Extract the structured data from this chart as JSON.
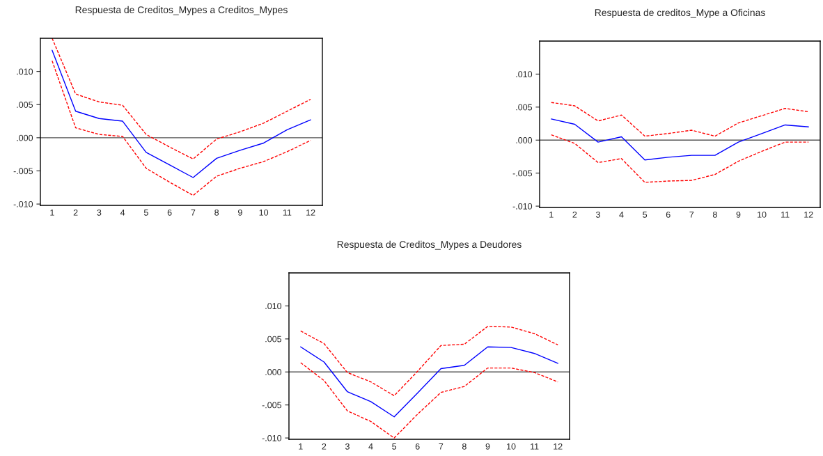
{
  "chart_data": [
    {
      "type": "line",
      "title": "Respuesta de Creditos_Mypes a Creditos_Mypes",
      "categories": [
        "1",
        "2",
        "3",
        "4",
        "5",
        "6",
        "7",
        "8",
        "9",
        "10",
        "11",
        "12"
      ],
      "ylim": [
        -0.0102,
        0.015
      ],
      "yticks": [
        {
          "value": -0.01,
          "label": "-.010"
        },
        {
          "value": -0.005,
          "label": "-.005"
        },
        {
          "value": 0,
          "label": ".000"
        },
        {
          "value": 0.005,
          "label": ".005"
        },
        {
          "value": 0.01,
          "label": ".010"
        }
      ],
      "grid": false,
      "legend": false,
      "series": [
        {
          "color": "#0000ff",
          "line_style": "solid",
          "values": [
            0.0132,
            0.004,
            0.0029,
            0.0025,
            -0.0022,
            -0.0041,
            -0.006,
            -0.0031,
            -0.0019,
            -0.0008,
            0.0012,
            0.0027
          ]
        },
        {
          "color": "#ff0000",
          "line_style": "dashed",
          "values": [
            0.015,
            0.0066,
            0.0054,
            0.0049,
            0.0005,
            -0.0014,
            -0.0032,
            -0.0002,
            0.0009,
            0.0022,
            0.004,
            0.0058
          ]
        },
        {
          "color": "#ff0000",
          "line_style": "dashed",
          "values": [
            0.0116,
            0.0015,
            0.0005,
            0.0002,
            -0.0046,
            -0.0067,
            -0.0087,
            -0.0058,
            -0.0046,
            -0.0036,
            -0.0021,
            -0.0004
          ]
        }
      ],
      "ref_lines": [
        {
          "axis": "y",
          "value": 0,
          "color": "#555555",
          "line_style": "solid"
        }
      ]
    },
    {
      "type": "line",
      "title": "Respuesta de creditos_Mype a Oficinas",
      "categories": [
        "1",
        "2",
        "3",
        "4",
        "5",
        "6",
        "7",
        "8",
        "9",
        "10",
        "11",
        "12"
      ],
      "ylim": [
        -0.0102,
        0.015
      ],
      "yticks": [
        {
          "value": -0.01,
          "label": "-.010"
        },
        {
          "value": -0.005,
          "label": "-.005"
        },
        {
          "value": 0,
          "label": ".000"
        },
        {
          "value": 0.005,
          "label": ".005"
        },
        {
          "value": 0.01,
          "label": ".010"
        }
      ],
      "grid": false,
      "legend": false,
      "series": [
        {
          "color": "#0000ff",
          "line_style": "solid",
          "values": [
            0.0032,
            0.0024,
            -0.0003,
            0.0005,
            -0.003,
            -0.0026,
            -0.0023,
            -0.0023,
            -0.0003,
            0.001,
            0.0023,
            0.002
          ]
        },
        {
          "color": "#ff0000",
          "line_style": "dashed",
          "values": [
            0.0057,
            0.0052,
            0.0029,
            0.0038,
            0.0006,
            0.001,
            0.0015,
            0.0006,
            0.0026,
            0.0037,
            0.0048,
            0.0043
          ]
        },
        {
          "color": "#ff0000",
          "line_style": "dashed",
          "values": [
            0.0008,
            -0.0005,
            -0.0034,
            -0.0028,
            -0.0064,
            -0.0062,
            -0.0061,
            -0.0052,
            -0.0032,
            -0.0017,
            -0.0003,
            -0.0003
          ]
        }
      ],
      "ref_lines": [
        {
          "axis": "y",
          "value": 0,
          "color": "#555555",
          "line_style": "solid"
        }
      ]
    },
    {
      "type": "line",
      "title": "Respuesta de Creditos_Mypes a Deudores",
      "categories": [
        "1",
        "2",
        "3",
        "4",
        "5",
        "6",
        "7",
        "8",
        "9",
        "10",
        "11",
        "12"
      ],
      "ylim": [
        -0.0102,
        0.015
      ],
      "yticks": [
        {
          "value": -0.01,
          "label": "-.010"
        },
        {
          "value": -0.005,
          "label": "-.005"
        },
        {
          "value": 0,
          "label": ".000"
        },
        {
          "value": 0.005,
          "label": ".005"
        },
        {
          "value": 0.01,
          "label": ".010"
        }
      ],
      "grid": false,
      "legend": false,
      "series": [
        {
          "color": "#0000ff",
          "line_style": "solid",
          "values": [
            0.0038,
            0.0015,
            -0.003,
            -0.0045,
            -0.0068,
            -0.0032,
            0.0005,
            0.001,
            0.0038,
            0.0037,
            0.0028,
            0.0013
          ]
        },
        {
          "color": "#ff0000",
          "line_style": "dashed",
          "values": [
            0.0062,
            0.0043,
            -0.0001,
            -0.0015,
            -0.0036,
            0.0001,
            0.004,
            0.0042,
            0.0069,
            0.0068,
            0.0058,
            0.0041
          ]
        },
        {
          "color": "#ff0000",
          "line_style": "dashed",
          "values": [
            0.0014,
            -0.0013,
            -0.0059,
            -0.0075,
            -0.01,
            -0.0064,
            -0.0031,
            -0.0022,
            0.0006,
            0.0006,
            -0.0001,
            -0.0015
          ]
        }
      ],
      "ref_lines": [
        {
          "axis": "y",
          "value": 0,
          "color": "#555555",
          "line_style": "solid"
        }
      ]
    }
  ]
}
